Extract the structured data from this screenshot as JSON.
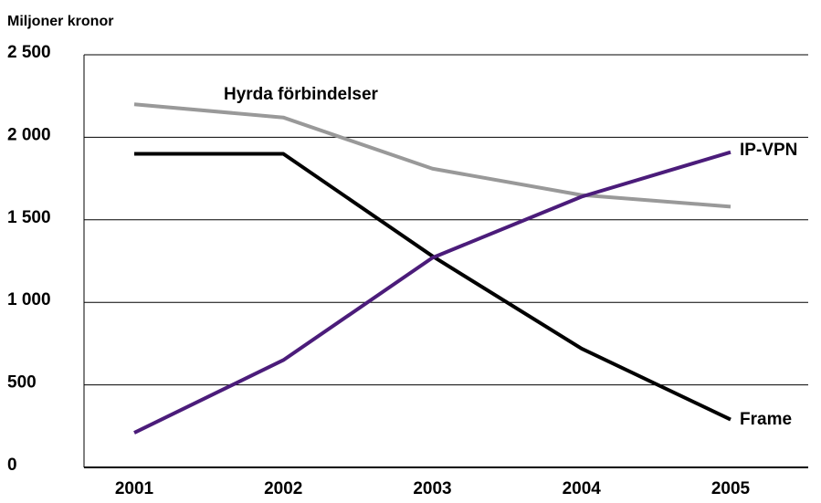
{
  "chart_data": {
    "type": "line",
    "y_axis_label": "Miljoner kronor",
    "categories": [
      "2001",
      "2002",
      "2003",
      "2004",
      "2005"
    ],
    "series": [
      {
        "name": "Hyrda förbindelser",
        "color": "#999999",
        "values": [
          2200,
          2120,
          1810,
          1650,
          1580
        ]
      },
      {
        "name": "Frame",
        "color": "#000000",
        "values": [
          1900,
          1900,
          1280,
          720,
          290
        ]
      },
      {
        "name": "IP-VPN",
        "color": "#4b1c7a",
        "values": [
          210,
          650,
          1270,
          1640,
          1910
        ]
      }
    ],
    "ylim": [
      0,
      2500
    ],
    "yticks": [
      0,
      500,
      {
        "value": 1000,
        "label": "1 000"
      },
      {
        "value": 1500,
        "label": "1 500"
      },
      {
        "value": 2000,
        "label": "2 000"
      },
      {
        "value": 2500,
        "label": "2 500"
      }
    ],
    "grid": true
  }
}
